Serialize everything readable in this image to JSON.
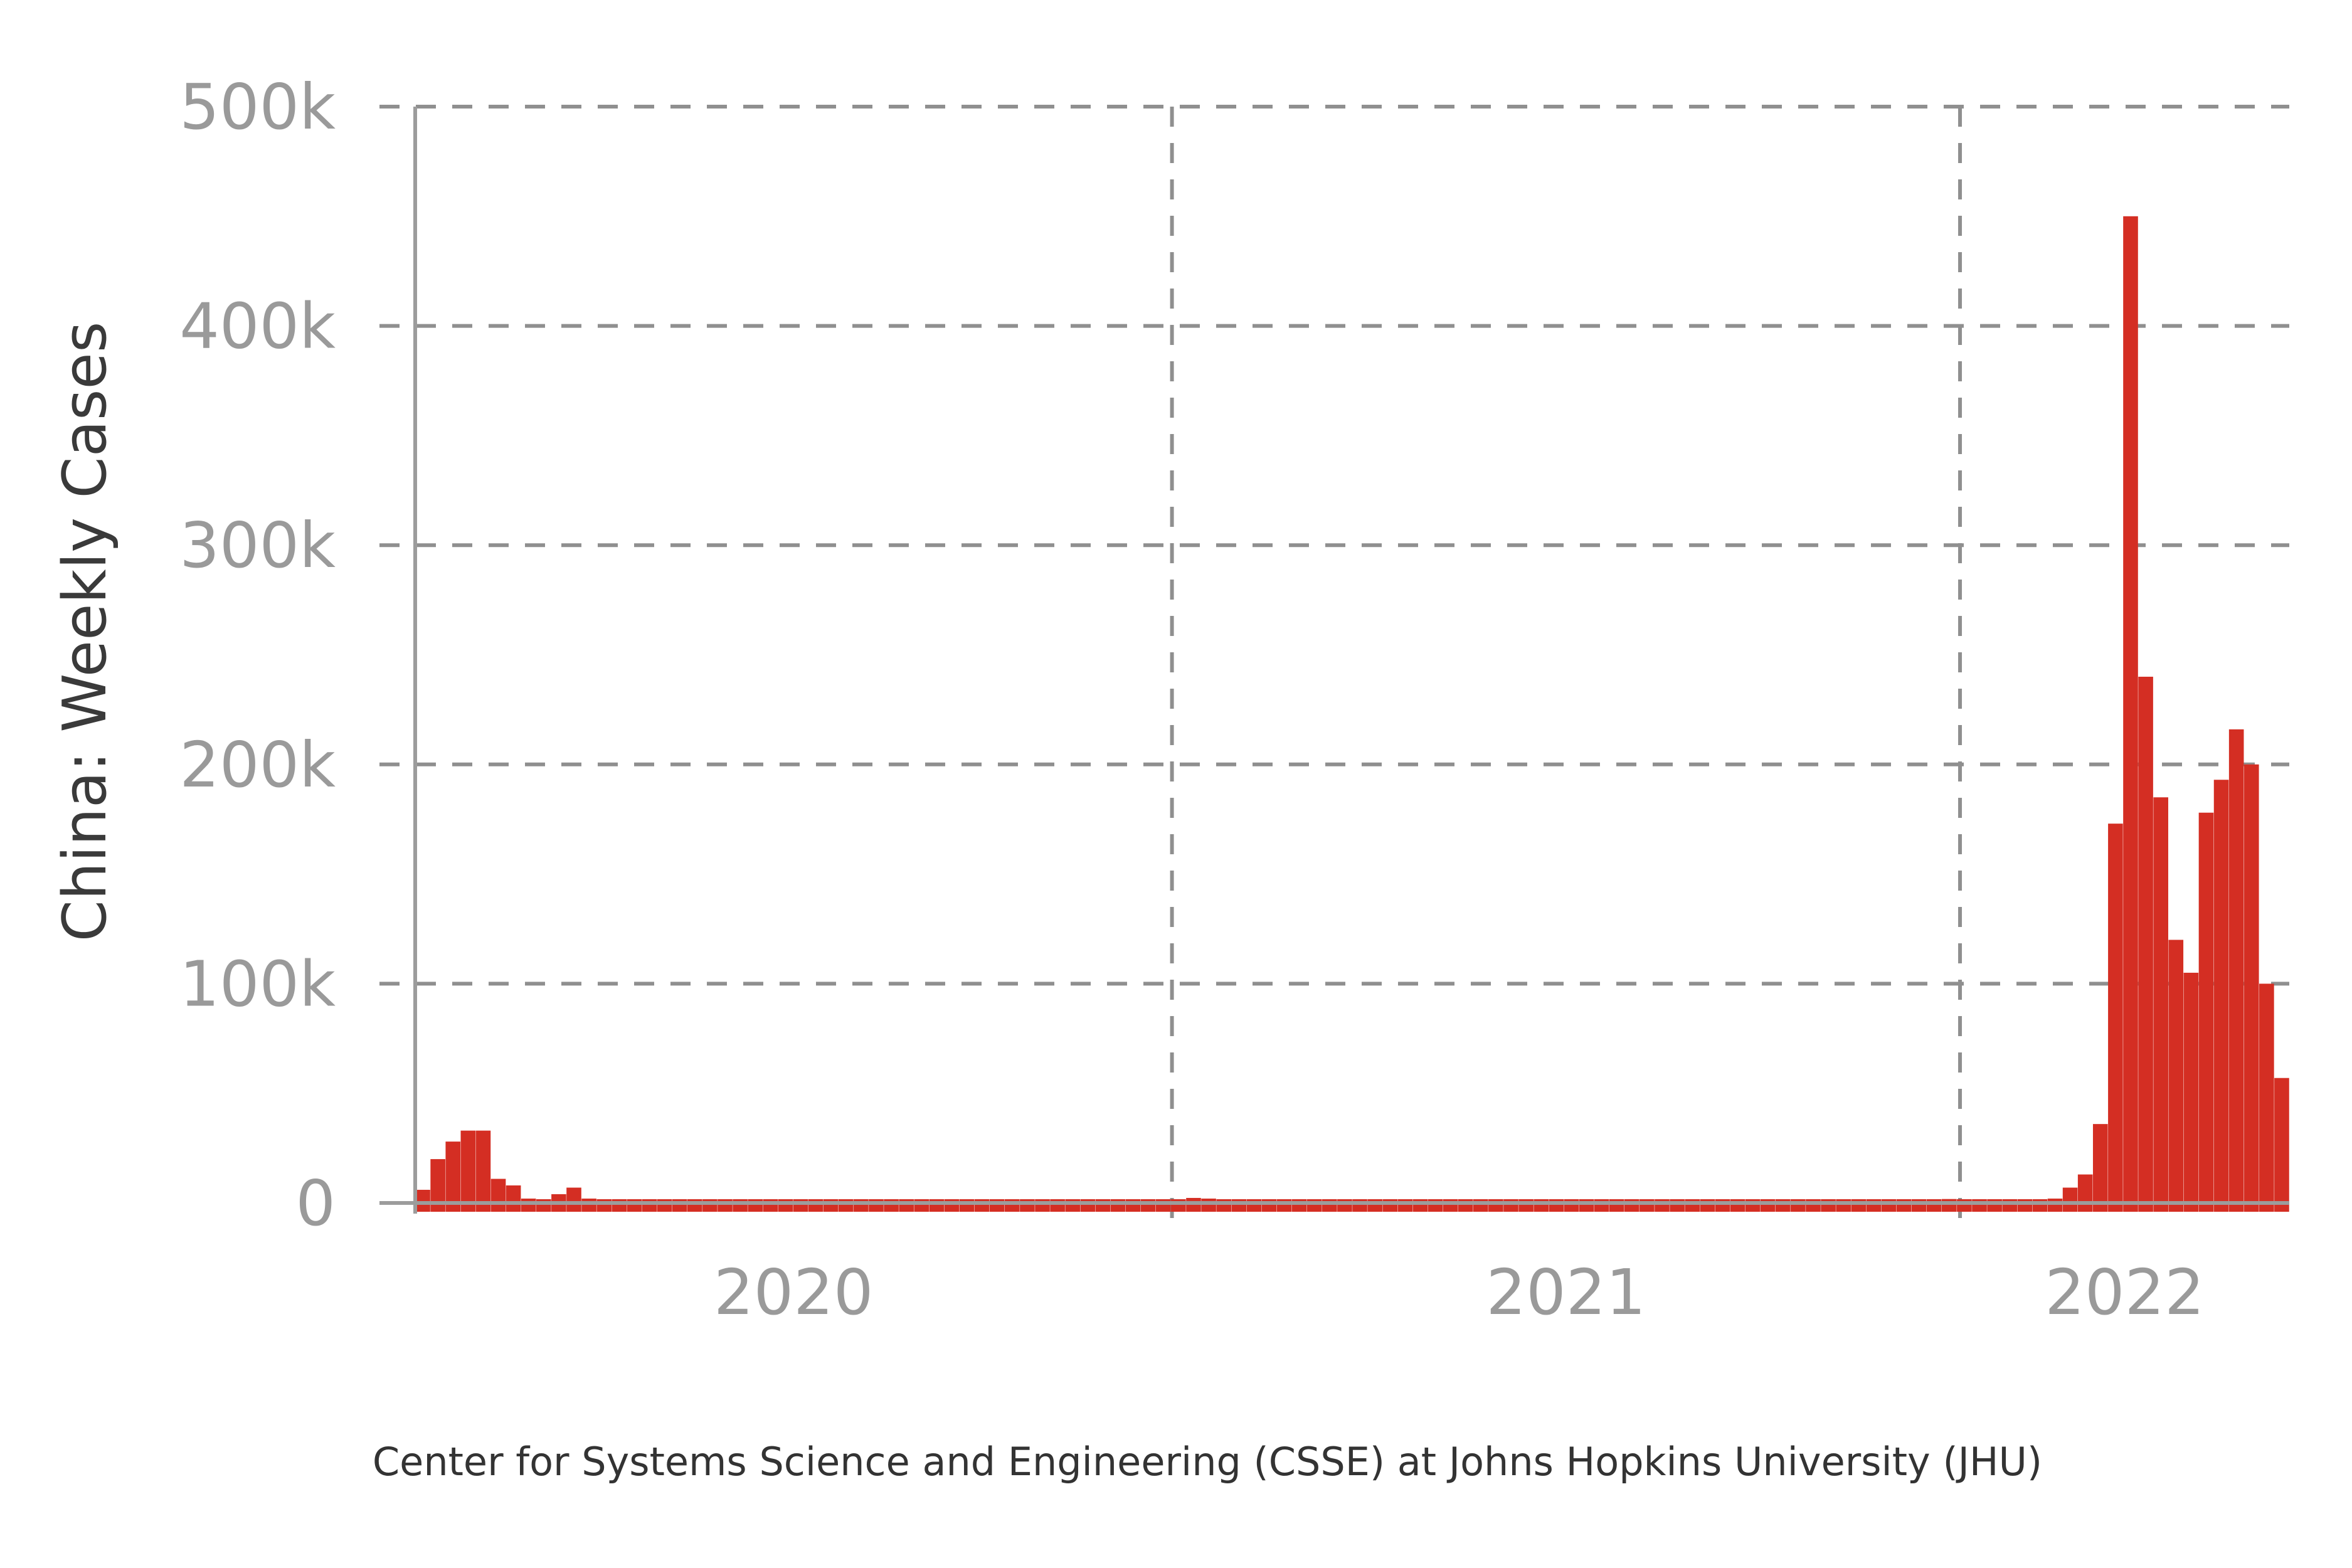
{
  "chart_data": {
    "type": "bar",
    "ylabel": "China: Weekly Cases",
    "source": "Center for Systems Science and Engineering (CSSE) at Johns Hopkins University (JHU)",
    "ylim": [
      0,
      500000
    ],
    "yticks": [
      {
        "value": 0,
        "label": "0"
      },
      {
        "value": 100000,
        "label": "100k"
      },
      {
        "value": 200000,
        "label": "200k"
      },
      {
        "value": 300000,
        "label": "300k"
      },
      {
        "value": 400000,
        "label": "400k"
      },
      {
        "value": 500000,
        "label": "500k"
      }
    ],
    "xticks": [
      "2020",
      "2021",
      "2022"
    ],
    "year_boundaries": [
      "2020-01-01",
      "2021-01-01",
      "2022-01-01"
    ],
    "grid": true,
    "color": "#d42e23",
    "x": [
      "2020-01-20",
      "2020-01-27",
      "2020-02-03",
      "2020-02-10",
      "2020-02-17",
      "2020-02-24",
      "2020-03-02",
      "2020-03-09",
      "2020-03-16",
      "2020-03-23",
      "2020-03-30",
      "2020-04-06",
      "2020-04-13",
      "2020-04-20",
      "2020-04-27",
      "2020-05-04",
      "2020-05-11",
      "2020-05-18",
      "2020-05-25",
      "2020-06-01",
      "2020-06-08",
      "2020-06-15",
      "2020-06-22",
      "2020-06-29",
      "2020-07-06",
      "2020-07-13",
      "2020-07-20",
      "2020-07-27",
      "2020-08-03",
      "2020-08-10",
      "2020-08-17",
      "2020-08-24",
      "2020-08-31",
      "2020-09-07",
      "2020-09-14",
      "2020-09-21",
      "2020-09-28",
      "2020-10-05",
      "2020-10-12",
      "2020-10-19",
      "2020-10-26",
      "2020-11-02",
      "2020-11-09",
      "2020-11-16",
      "2020-11-23",
      "2020-11-30",
      "2020-12-07",
      "2020-12-14",
      "2020-12-21",
      "2020-12-28",
      "2021-01-04",
      "2021-01-11",
      "2021-01-18",
      "2021-01-25",
      "2021-02-01",
      "2021-02-08",
      "2021-02-15",
      "2021-02-22",
      "2021-03-01",
      "2021-03-08",
      "2021-03-15",
      "2021-03-22",
      "2021-03-29",
      "2021-04-05",
      "2021-04-12",
      "2021-04-19",
      "2021-04-26",
      "2021-05-03",
      "2021-05-10",
      "2021-05-17",
      "2021-05-24",
      "2021-05-31",
      "2021-06-07",
      "2021-06-14",
      "2021-06-21",
      "2021-06-28",
      "2021-07-05",
      "2021-07-12",
      "2021-07-19",
      "2021-07-26",
      "2021-08-02",
      "2021-08-09",
      "2021-08-16",
      "2021-08-23",
      "2021-08-30",
      "2021-09-06",
      "2021-09-13",
      "2021-09-20",
      "2021-09-27",
      "2021-10-04",
      "2021-10-11",
      "2021-10-18",
      "2021-10-25",
      "2021-11-01",
      "2021-11-08",
      "2021-11-15",
      "2021-11-22",
      "2021-11-29",
      "2021-12-06",
      "2021-12-13",
      "2021-12-20",
      "2021-12-27",
      "2022-01-03",
      "2022-01-10",
      "2022-01-17",
      "2022-01-24",
      "2022-01-31",
      "2022-02-07",
      "2022-02-14",
      "2022-02-21",
      "2022-02-28",
      "2022-03-07",
      "2022-03-14",
      "2022-03-21",
      "2022-03-28",
      "2022-04-04",
      "2022-04-11",
      "2022-04-18",
      "2022-04-25",
      "2022-05-02",
      "2022-05-09",
      "2022-05-16",
      "2022-05-23",
      "2022-05-30"
    ],
    "values": [
      6000,
      20000,
      28000,
      33000,
      33000,
      11000,
      8000,
      2000,
      500,
      4000,
      7000,
      2000,
      300,
      200,
      100,
      100,
      100,
      150,
      100,
      100,
      300,
      200,
      100,
      100,
      100,
      200,
      500,
      600,
      500,
      300,
      200,
      150,
      100,
      100,
      100,
      100,
      100,
      100,
      100,
      200,
      150,
      150,
      200,
      150,
      150,
      150,
      200,
      200,
      300,
      300,
      1200,
      2300,
      2000,
      1000,
      300,
      100,
      100,
      100,
      100,
      100,
      100,
      100,
      100,
      100,
      150,
      200,
      150,
      100,
      100,
      150,
      200,
      250,
      250,
      200,
      200,
      150,
      200,
      300,
      400,
      500,
      600,
      400,
      300,
      200,
      300,
      400,
      500,
      400,
      300,
      300,
      400,
      500,
      700,
      800,
      900,
      700,
      600,
      700,
      900,
      1200,
      1500,
      1800,
      1600,
      1400,
      1300,
      1200,
      1100,
      1200,
      2000,
      7000,
      13000,
      36000,
      173000,
      450000,
      240000,
      185000,
      120000,
      105000,
      178000,
      193000,
      216000,
      200000,
      100000,
      57000
    ]
  }
}
